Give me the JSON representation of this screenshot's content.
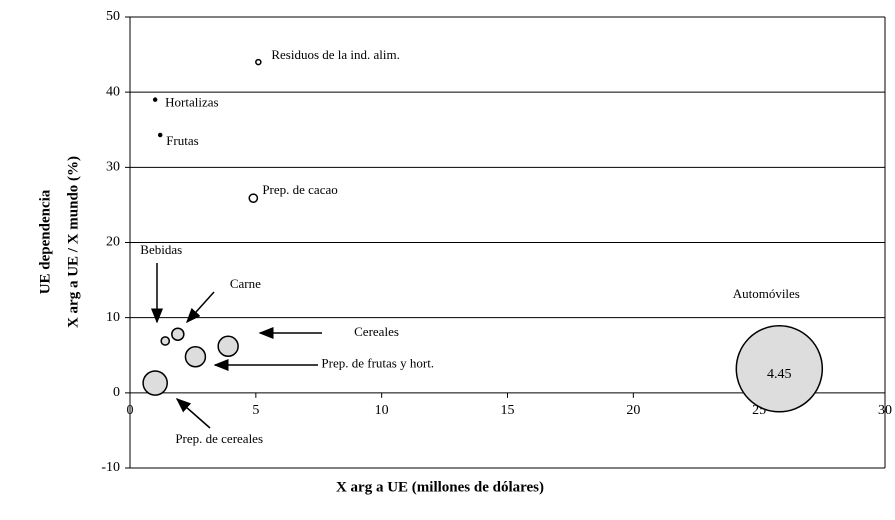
{
  "chart_data": {
    "type": "bubble",
    "xlabel": "X arg a UE (millones de dólares)",
    "ylabel": [
      "UE dependencia",
      "X arg a UE / X mundo (%)"
    ],
    "categories": [
      "Residuos de la ind. alim.",
      "Hortalizas",
      "Frutas",
      "Prep. de cacao",
      "Bebidas",
      "Carne",
      "Cereales",
      "Prep. de frutas y hort.",
      "Prep. de cereales",
      "Automóviles"
    ],
    "x": [
      5.1,
      1.0,
      1.2,
      4.9,
      1.4,
      1.9,
      3.9,
      2.6,
      1.0,
      25.8
    ],
    "values": [
      44,
      39,
      34.3,
      25.9,
      6.9,
      7.8,
      6.2,
      4.8,
      1.3,
      3.2
    ],
    "sizes": [
      0.015,
      0.005,
      0.005,
      0.04,
      0.04,
      0.087,
      0.24,
      0.24,
      0.35,
      4.45
    ],
    "size_labels": [
      null,
      null,
      null,
      null,
      null,
      null,
      null,
      null,
      null,
      "4.45"
    ],
    "colors": [
      "#ffffff",
      "#000000",
      "#000000",
      "#ffffff",
      "#dddddd",
      "#dddddd",
      "#dddddd",
      "#dddddd",
      "#dddddd",
      "#dddddd"
    ],
    "xlim": [
      0,
      30
    ],
    "xticks": [
      0,
      5,
      10,
      15,
      20,
      25,
      30
    ],
    "ylim": [
      -10,
      50
    ],
    "yticks": [
      -10,
      0,
      10,
      20,
      30,
      40,
      50
    ],
    "grid": true
  }
}
